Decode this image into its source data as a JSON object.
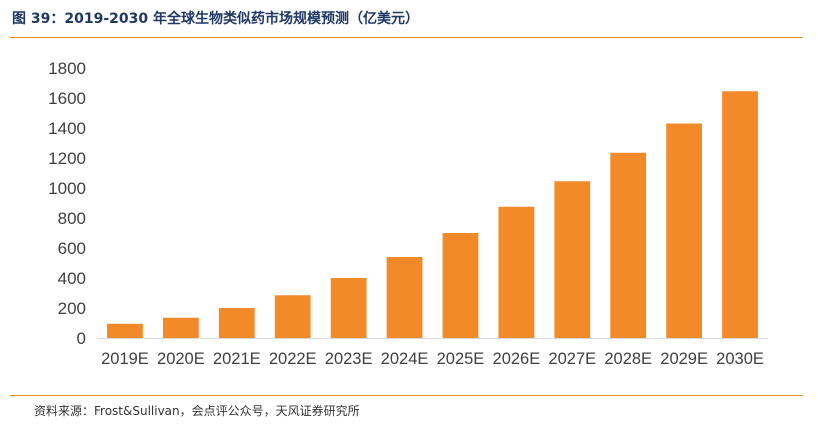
{
  "figure": {
    "title": "图 39：2019-2030 年全球生物类似药市场规模预测（亿美元）",
    "source": "资料来源：Frost&Sullivan，会点评公众号，天风证券研究所"
  },
  "colors": {
    "bar": "#f28a2a",
    "axis_text": "#404040",
    "title": "#1f3864",
    "rule": "#f08a24"
  },
  "chart_data": {
    "type": "bar",
    "categories": [
      "2019E",
      "2020E",
      "2021E",
      "2022E",
      "2023E",
      "2024E",
      "2025E",
      "2026E",
      "2027E",
      "2028E",
      "2029E",
      "2030E"
    ],
    "values": [
      95,
      135,
      200,
      285,
      400,
      540,
      700,
      875,
      1045,
      1235,
      1430,
      1645
    ],
    "title": "",
    "xlabel": "",
    "ylabel": "",
    "ylim": [
      0,
      1800
    ],
    "yticks": [
      0,
      200,
      400,
      600,
      800,
      1000,
      1200,
      1400,
      1600,
      1800
    ],
    "grid": false,
    "legend": "none"
  }
}
